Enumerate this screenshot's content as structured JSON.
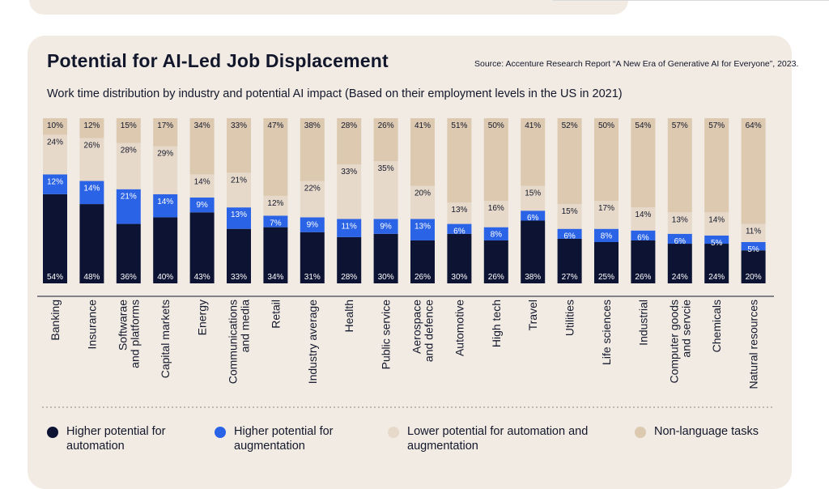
{
  "title": "Potential for AI-Led Job Displacement",
  "source": "Source: Accenture Research Report “A New Era of Generative AI for Everyone”, 2023.",
  "subtitle": "Work time distribution by industry and potential AI impact (Based on their employment levels in the US in 2021)",
  "colors": {
    "automation": "#0d1433",
    "augmentation": "#2a63e6",
    "lower": "#e6d9c9",
    "nonlanguage": "#dcc9b0",
    "card_bg": "#f1ebe3",
    "text": "#13172b"
  },
  "legend": [
    {
      "key": "automation",
      "label": "Higher potential for automation"
    },
    {
      "key": "augmentation",
      "label": "Higher potential for augmentation"
    },
    {
      "key": "lower",
      "label": "Lower potential for automation and augmentation"
    },
    {
      "key": "nonlanguage",
      "label": "Non-language tasks"
    }
  ],
  "chart_data": {
    "type": "bar",
    "stacked": true,
    "percent_stacked": true,
    "title": "Potential for AI-Led Job Displacement",
    "ylim": [
      0,
      100
    ],
    "categories": [
      "Banking",
      "Insurance",
      "Softwarae and platforms",
      "Capital markets",
      "Energy",
      "Communications and media",
      "Retail",
      "Industry average",
      "Health",
      "Public service",
      "Aerospace and defence",
      "Automotive",
      "High tech",
      "Travel",
      "Utilities",
      "Life sciences",
      "Industrial",
      "Computer goods and servcie",
      "Chemicals",
      "Natural resources"
    ],
    "category_lines": [
      [
        "Banking"
      ],
      [
        "Insurance"
      ],
      [
        "Softwarae",
        "and platforms"
      ],
      [
        "Capital markets"
      ],
      [
        "Energy"
      ],
      [
        "Communications",
        "and media"
      ],
      [
        "Retail"
      ],
      [
        "Industry average"
      ],
      [
        "Health"
      ],
      [
        "Public service"
      ],
      [
        "Aerospace",
        "and defence"
      ],
      [
        "Automotive"
      ],
      [
        "High tech"
      ],
      [
        "Travel"
      ],
      [
        "Utilities"
      ],
      [
        "Life sciences"
      ],
      [
        "Industrial"
      ],
      [
        "Computer goods",
        "and servcie"
      ],
      [
        "Chemicals"
      ],
      [
        "Natural resources"
      ]
    ],
    "series": [
      {
        "name": "Higher potential for automation",
        "key": "automation",
        "values": [
          54,
          48,
          36,
          40,
          43,
          33,
          34,
          31,
          28,
          30,
          26,
          30,
          26,
          38,
          27,
          25,
          26,
          24,
          24,
          20
        ]
      },
      {
        "name": "Higher potential for augmentation",
        "key": "augmentation",
        "values": [
          12,
          14,
          21,
          14,
          9,
          13,
          7,
          9,
          11,
          9,
          13,
          6,
          8,
          6,
          6,
          8,
          6,
          6,
          5,
          5
        ]
      },
      {
        "name": "Lower potential for automation and augmentation",
        "key": "lower",
        "values": [
          24,
          26,
          28,
          29,
          14,
          21,
          12,
          22,
          33,
          35,
          20,
          13,
          16,
          15,
          15,
          17,
          14,
          13,
          14,
          11
        ]
      },
      {
        "name": "Non-language tasks",
        "key": "nonlanguage",
        "values": [
          10,
          12,
          15,
          17,
          34,
          33,
          47,
          38,
          28,
          26,
          41,
          51,
          50,
          41,
          52,
          50,
          54,
          57,
          57,
          64
        ]
      }
    ]
  }
}
